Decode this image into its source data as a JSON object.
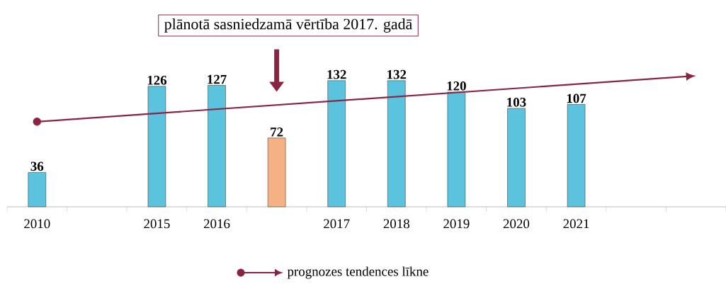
{
  "chart_data": {
    "type": "bar",
    "categories": [
      "2010",
      null,
      "2015",
      "2016",
      null,
      "2017",
      "2018",
      "2019",
      "2020",
      "2021",
      null,
      null
    ],
    "series": [
      {
        "values": [
          36,
          null,
          126,
          127,
          72,
          132,
          132,
          120,
          103,
          107,
          null,
          null
        ],
        "value_labels": [
          "36",
          null,
          "126",
          "127",
          "72",
          "132",
          "132",
          "120",
          "103",
          "107",
          null,
          null
        ],
        "colors": [
          "#5bc3dd",
          null,
          "#5bc3dd",
          "#5bc3dd",
          "#f4b183",
          "#5bc3dd",
          "#5bc3dd",
          "#5bc3dd",
          "#5bc3dd",
          "#5bc3dd",
          null,
          null
        ]
      },
      {
        "type": "line",
        "name": "prognozes tendences līkne",
        "color": "#8b2443",
        "marker": "circle",
        "values": [
          89,
          null,
          null,
          null,
          null,
          null,
          null,
          null,
          null,
          null,
          null,
          137
        ]
      }
    ],
    "legend": "bottom",
    "annotations": [
      "plānotā sasniedzamā vērtība 2017. gadā"
    ]
  }
}
